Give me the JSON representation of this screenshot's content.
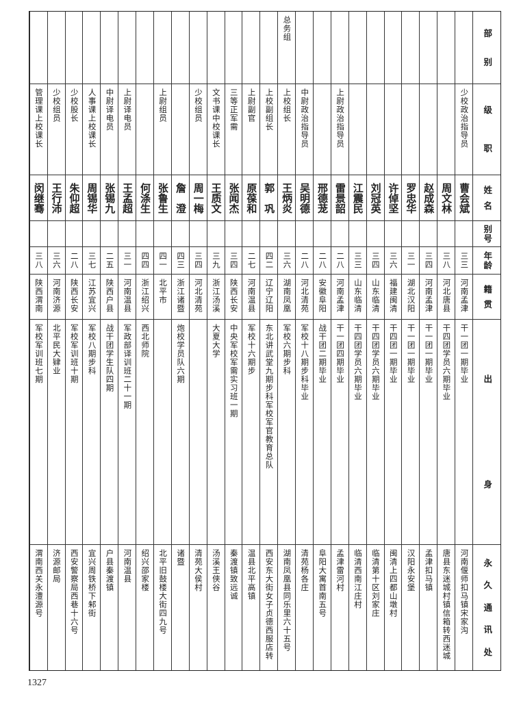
{
  "headers": {
    "department": [
      "部",
      "别"
    ],
    "rank_position": [
      "级",
      "职"
    ],
    "name": [
      "姓",
      "名"
    ],
    "alias": [
      "别",
      "号"
    ],
    "age": [
      "年",
      "龄"
    ],
    "native_place": [
      "籍",
      "贯"
    ],
    "background": [
      "出",
      "身"
    ],
    "permanent_address": [
      "永",
      "久",
      "通",
      "讯",
      "处"
    ]
  },
  "rows": [
    {
      "department": "",
      "rank": "少校政治指导员",
      "name": "曹会斌",
      "alias": "",
      "age": "三三",
      "native": "河南孟津",
      "background": "干一团一期毕业",
      "address": "河南偃师扣马镇宋家沟"
    },
    {
      "department": "",
      "rank": "",
      "name": "周文林",
      "alias": "",
      "age": "三八",
      "native": "河北唐县",
      "background": "干四团学员六期毕业",
      "address": "唐县东迷城村镇信箱转西迷城"
    },
    {
      "department": "",
      "rank": "",
      "name": "赵成森",
      "alias": "",
      "age": "三四",
      "native": "河南孟津",
      "background": "干一团一期毕业",
      "address": "孟津扣马镇"
    },
    {
      "department": "",
      "rank": "",
      "name": "罗忠华",
      "alias": "",
      "age": "三一",
      "native": "湖北汉阳",
      "background": "干一团一期毕业",
      "address": "汉阳永安堡"
    },
    {
      "department": "",
      "rank": "",
      "name": "许倬坚",
      "alias": "",
      "age": "三六",
      "native": "福建闽清",
      "background": "干四团一期毕业",
      "address": "闽清上四都山墩村"
    },
    {
      "department": "",
      "rank": "",
      "name": "刘冠英",
      "alias": "",
      "age": "三四",
      "native": "山东临清",
      "background": "干四团学员六期毕业",
      "address": "临清第十区刘家庄"
    },
    {
      "department": "",
      "rank": "",
      "name": "江震民",
      "alias": "",
      "age": "三三",
      "native": "山东临清",
      "background": "干四团学员六期毕业",
      "address": "临清西南江庄村"
    },
    {
      "department": "",
      "rank": "上尉政治指导员",
      "name": "雷景韶",
      "alias": "",
      "age": "二八",
      "native": "河南孟津",
      "background": "干一团四期毕业",
      "address": "孟津雷河村"
    },
    {
      "department": "",
      "rank": "",
      "name": "邢德茏",
      "alias": "",
      "age": "二八",
      "native": "安徽阜阳",
      "background": "战干团二期毕业",
      "address": "阜阳大寓首南五号"
    },
    {
      "department": "",
      "rank": "中尉政治指导员",
      "name": "吴明德",
      "alias": "",
      "age": "二八",
      "native": "河北清苑",
      "background": "军校十八期步科毕业",
      "address": "清苑杨各庄"
    },
    {
      "department": "总务组",
      "rank": "上校组长",
      "name": "王炳炎",
      "alias": "",
      "age": "三六",
      "native": "湖南凤凰",
      "background": "军校六期步科",
      "address": "湖南凤凰县同乐里六十五号"
    },
    {
      "department": "",
      "rank": "上校副组长",
      "name": "郭　巩",
      "alias": "",
      "age": "四二",
      "native": "辽宁辽阳",
      "background": "东北讲武堂九期步科军校军官教育总队",
      "address": "西安东大街女子贞德西服店转"
    },
    {
      "department": "",
      "rank": "上尉副官",
      "name": "原葆和",
      "alias": "",
      "age": "二七",
      "native": "河南温县",
      "background": "军校十六期步",
      "address": "温县北平高镇"
    },
    {
      "department": "",
      "rank": "三等正军需",
      "name": "张闻杰",
      "alias": "",
      "age": "三四",
      "native": "陕西长安",
      "background": "中央军校军需实习班一期",
      "address": "秦渡镇致远诚"
    },
    {
      "department": "",
      "rank": "文书课中校课长",
      "name": "王质文",
      "alias": "",
      "age": "三九",
      "native": "浙江汤溪",
      "background": "大夏大学",
      "address": "汤溪王侠谷"
    },
    {
      "department": "",
      "rank": "少校组员",
      "name": "周一梅",
      "alias": "",
      "age": "三四",
      "native": "河北清苑",
      "background": "",
      "address": "清苑大侯村"
    },
    {
      "department": "",
      "rank": "",
      "name": "詹　澄",
      "alias": "",
      "age": "四三",
      "native": "浙江诸暨",
      "background": "炮校学员队六期",
      "address": "诸暨"
    },
    {
      "department": "",
      "rank": "上尉组员",
      "name": "张鲁生",
      "alias": "",
      "age": "四一",
      "native": "北平市",
      "background": "",
      "address": "北平旧鼓楼大街四九号"
    },
    {
      "department": "",
      "rank": "",
      "name": "何涤生",
      "alias": "",
      "age": "四四",
      "native": "浙江绍兴",
      "background": "西北师院",
      "address": "绍兴邵家楼"
    },
    {
      "department": "",
      "rank": "上尉译电员",
      "name": "王孟超",
      "alias": "",
      "age": "三一",
      "native": "河南温县",
      "background": "军政部译训班二十一期",
      "address": "河南温县"
    },
    {
      "department": "",
      "rank": "中尉译电员",
      "name": "张锡九",
      "alias": "",
      "age": "二五",
      "native": "陕西户县",
      "background": "战干团学生队四期",
      "address": "户县秦渡镇"
    },
    {
      "department": "",
      "rank": "人事课上校课长",
      "name": "周锡华",
      "alias": "",
      "age": "三七",
      "native": "江苏宜兴",
      "background": "军校八期步科",
      "address": "宜兴周铁桥下邾街"
    },
    {
      "department": "",
      "rank": "少校股长",
      "name": "朱仰超",
      "alias": "",
      "age": "二八",
      "native": "陕西长安",
      "background": "军校军训班十期",
      "address": "西安警察局西巷十六号"
    },
    {
      "department": "",
      "rank": "少校组员",
      "name": "王行沛",
      "alias": "",
      "age": "三六",
      "native": "河南济源",
      "background": "北平民大肄业",
      "address": "济源邮局"
    },
    {
      "department": "",
      "rank": "管理课上校课长",
      "name": "闵继骞",
      "alias": "",
      "age": "三八",
      "native": "陕西渭南",
      "background": "军校军训班七期",
      "address": "渭南西关永澧源号"
    }
  ],
  "page_number": "1327"
}
